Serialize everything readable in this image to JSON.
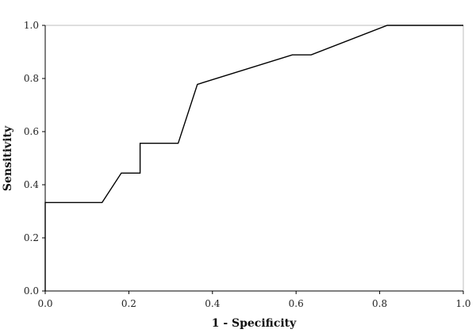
{
  "chart_data": {
    "type": "line",
    "title": "",
    "xlabel": "1 - Specificity",
    "ylabel": "Sensitivity",
    "xlim": [
      0.0,
      1.0
    ],
    "ylim": [
      0.0,
      1.0
    ],
    "x_ticks": [
      "0.0",
      "0.2",
      "0.4",
      "0.6",
      "0.8",
      "1.0"
    ],
    "y_ticks": [
      "0.0",
      "0.2",
      "0.4",
      "0.6",
      "0.8",
      "1.0"
    ],
    "grid": false,
    "legend": "none",
    "series": [
      {
        "color": "#000000",
        "x": [
          0.0,
          0.0,
          0.136,
          0.182,
          0.227,
          0.227,
          0.318,
          0.364,
          0.591,
          0.636,
          0.818,
          1.0
        ],
        "y": [
          0.0,
          0.333,
          0.333,
          0.444,
          0.444,
          0.556,
          0.556,
          0.778,
          0.889,
          0.889,
          1.0,
          1.0
        ]
      }
    ]
  }
}
